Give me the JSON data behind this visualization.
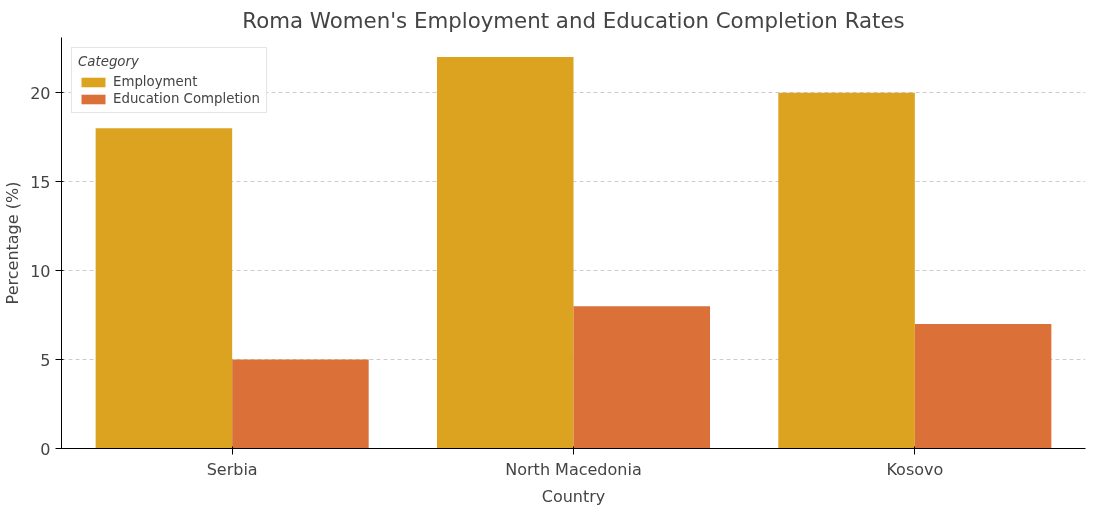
{
  "chart_data": {
    "type": "bar",
    "title": "Roma Women's Employment and Education Completion Rates",
    "xlabel": "Country",
    "ylabel": "Percentage (%)",
    "legend_title": "Category",
    "categories": [
      "Serbia",
      "North Macedonia",
      "Kosovo"
    ],
    "series": [
      {
        "name": "Employment",
        "color": "#dca321",
        "values": [
          18,
          22,
          20
        ]
      },
      {
        "name": "Education Completion",
        "color": "#db7139",
        "values": [
          5,
          8,
          7
        ]
      }
    ],
    "ylim": [
      0,
      23.1
    ],
    "yticks": [
      0,
      5,
      10,
      15,
      20
    ],
    "grid": "y",
    "legend": "top left"
  }
}
